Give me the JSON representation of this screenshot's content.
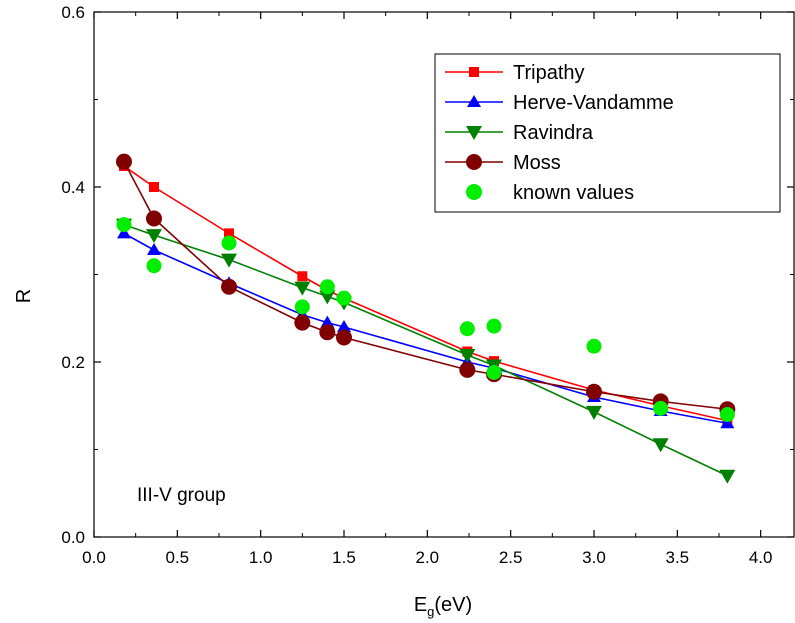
{
  "chart_data": {
    "type": "line",
    "xlabel": "E",
    "xlabel_sub": "g",
    "xlabel_unit": "(eV)",
    "ylabel": "R",
    "xlim": [
      0.0,
      4.2
    ],
    "ylim": [
      0.0,
      0.6
    ],
    "xticks": [
      "0.0",
      "0.5",
      "1.0",
      "1.5",
      "2.0",
      "2.5",
      "3.0",
      "3.5",
      "4.0"
    ],
    "yticks": [
      "0.0",
      "0.2",
      "0.4",
      "0.6"
    ],
    "annotation": "III-V group",
    "legend_position": "top-right",
    "series": [
      {
        "name": "Tripathy",
        "color": "#ff0000",
        "marker": "square",
        "line": true,
        "x": [
          0.18,
          0.36,
          0.81,
          1.25,
          1.4,
          1.5,
          2.24,
          2.4,
          3.0,
          3.4,
          3.8
        ],
        "y": [
          0.424,
          0.4,
          0.347,
          0.298,
          0.282,
          0.273,
          0.212,
          0.201,
          0.168,
          0.15,
          0.133
        ]
      },
      {
        "name": "Herve-Vandamme",
        "color": "#0000ff",
        "marker": "triangle-up",
        "line": true,
        "x": [
          0.18,
          0.36,
          0.81,
          1.25,
          1.4,
          1.5,
          2.24,
          2.4,
          3.0,
          3.4,
          3.8
        ],
        "y": [
          0.347,
          0.328,
          0.29,
          0.254,
          0.245,
          0.24,
          0.2,
          0.193,
          0.16,
          0.144,
          0.13
        ]
      },
      {
        "name": "Ravindra",
        "color": "#008000",
        "marker": "triangle-down",
        "line": true,
        "x": [
          0.18,
          0.36,
          0.81,
          1.25,
          1.4,
          1.5,
          2.24,
          2.4,
          3.0,
          3.4,
          3.8
        ],
        "y": [
          0.357,
          0.345,
          0.317,
          0.285,
          0.275,
          0.268,
          0.208,
          0.196,
          0.143,
          0.106,
          0.07
        ]
      },
      {
        "name": "Moss",
        "color": "#800000",
        "marker": "circle",
        "line": true,
        "x": [
          0.18,
          0.36,
          0.81,
          1.25,
          1.4,
          1.5,
          2.24,
          2.4,
          3.0,
          3.4,
          3.8
        ],
        "y": [
          0.429,
          0.364,
          0.286,
          0.245,
          0.234,
          0.228,
          0.191,
          0.186,
          0.166,
          0.155,
          0.146
        ]
      },
      {
        "name": "known values",
        "color": "#00ee00",
        "marker": "circle",
        "line": false,
        "x": [
          0.18,
          0.36,
          0.81,
          1.25,
          1.4,
          1.5,
          2.24,
          2.4,
          2.4,
          3.0,
          3.4,
          3.8
        ],
        "y": [
          0.357,
          0.31,
          0.336,
          0.263,
          0.286,
          0.273,
          0.238,
          0.241,
          0.188,
          0.218,
          0.147,
          0.14
        ]
      }
    ]
  }
}
